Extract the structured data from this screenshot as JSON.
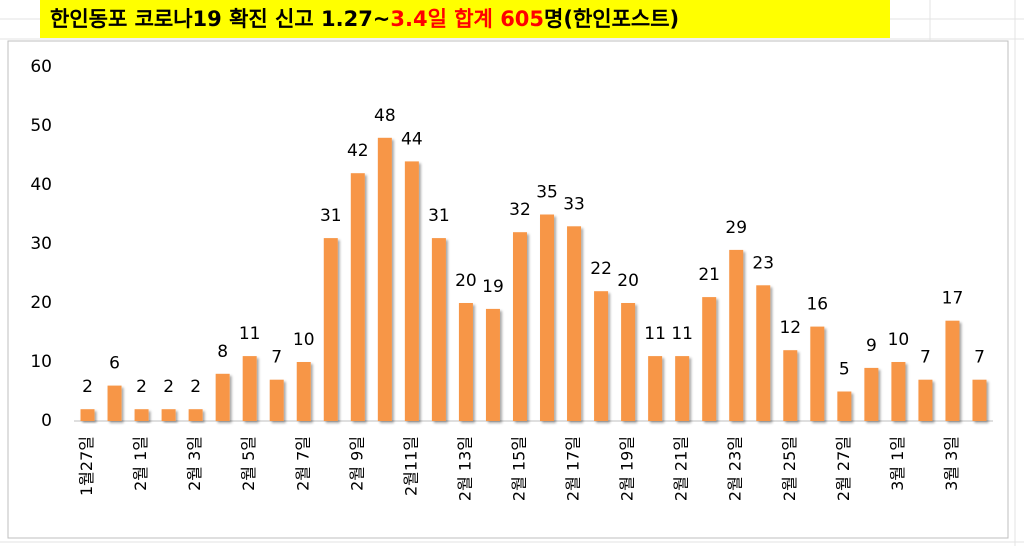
{
  "chart_data": {
    "type": "bar",
    "title": [
      "한인동포 코로나19 확진 신고 1.27~",
      "3.4일 합계 605",
      "명(한인포스트)"
    ],
    "title_colors": [
      "#000000",
      "#ff0000",
      "#000000"
    ],
    "categories": [
      "1월27일",
      null,
      "2월 1일",
      null,
      "2월 3일",
      null,
      "2월 5일",
      null,
      "2월 7일",
      null,
      "2월 9일",
      null,
      "2월11일",
      null,
      "2월 13일",
      null,
      "2월 15일",
      null,
      "2월 17일",
      null,
      "2월 19일",
      null,
      "2월 21일",
      null,
      "2월 23일",
      null,
      "2월 25일",
      null,
      "2월 27일",
      null,
      "3월 1일",
      null,
      "3월 3일",
      null
    ],
    "values": [
      2,
      6,
      2,
      2,
      2,
      8,
      11,
      7,
      10,
      31,
      42,
      48,
      44,
      31,
      20,
      19,
      32,
      35,
      33,
      22,
      20,
      11,
      11,
      21,
      29,
      23,
      12,
      16,
      5,
      9,
      10,
      7,
      17,
      7
    ],
    "color": "#f79646",
    "ylim": [
      0,
      60
    ],
    "yticks": [
      0,
      10,
      20,
      30,
      40,
      50,
      60
    ],
    "grid": false
  }
}
